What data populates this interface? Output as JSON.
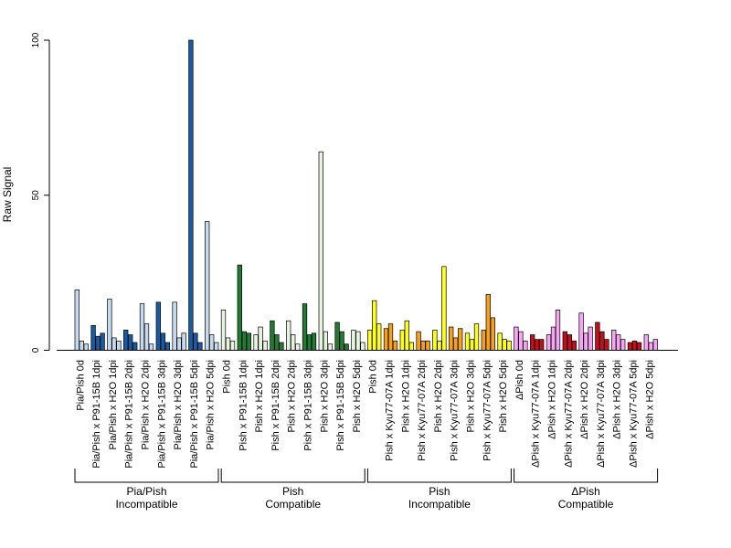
{
  "colors": {
    "pia_light": "#c6d9ee",
    "pia_dark": "#1a5aa0",
    "pish_light": "#e6f4df",
    "pish_dark": "#237a35",
    "kyu_light": "#ffff22",
    "kyu_dark": "#f5a11f",
    "dpish_light": "#f5a5f2",
    "dpish_dark": "#c0101e"
  },
  "chart_data": {
    "type": "bar",
    "ylabel": "Raw Signal",
    "ylim": [
      0,
      100
    ],
    "yticks": [
      "0",
      "50",
      "100"
    ],
    "grid": false,
    "groups": [
      {
        "line1": "Pia/Pish",
        "line2": "Incompatible",
        "categories": [
          {
            "label": "Pia/Pish 0d",
            "color": "pia_light",
            "values": [
              19.5,
              3,
              2
            ]
          },
          {
            "label": "Pia/Pish x P91-15B 1dpi",
            "color": "pia_dark",
            "values": [
              8,
              4.5,
              5.5
            ]
          },
          {
            "label": "Pia/Pish x H2O 1dpi",
            "color": "pia_light",
            "values": [
              16.5,
              4,
              3
            ]
          },
          {
            "label": "Pia/Pish x P91-15B 2dpi",
            "color": "pia_dark",
            "values": [
              6.5,
              5,
              2.5
            ]
          },
          {
            "label": "Pia/Pish x H2O 2dpi",
            "color": "pia_light",
            "values": [
              15,
              8.5,
              2
            ]
          },
          {
            "label": "Pia/Pish x P91-15B 3dpi",
            "color": "pia_dark",
            "values": [
              15.5,
              5.5,
              2.5
            ]
          },
          {
            "label": "Pia/Pish x H2O 3dpi",
            "color": "pia_light",
            "values": [
              15.5,
              4,
              5.5
            ]
          },
          {
            "label": "Pia/Pish x P91-15B 5dpi",
            "color": "pia_dark",
            "values": [
              100,
              5.5,
              2.5
            ]
          },
          {
            "label": "Pia/Pish x H2O 5dpi",
            "color": "pia_light",
            "values": [
              41.5,
              5,
              2.5
            ]
          }
        ]
      },
      {
        "line1": "Pish",
        "line2": "Compatible",
        "categories": [
          {
            "label": "Pish 0d",
            "color": "pish_light",
            "values": [
              13,
              4,
              3
            ]
          },
          {
            "label": "Pish x P91-15B 1dpi",
            "color": "pish_dark",
            "values": [
              27.5,
              6,
              5.5
            ]
          },
          {
            "label": "Pish x H2O 1dpi",
            "color": "pish_light",
            "values": [
              5,
              7.5,
              3
            ]
          },
          {
            "label": "Pish x P91-15B 2dpi",
            "color": "pish_dark",
            "values": [
              9.5,
              5,
              2.5
            ]
          },
          {
            "label": "Pish x H2O 2dpi",
            "color": "pish_light",
            "values": [
              9.5,
              5,
              2
            ]
          },
          {
            "label": "Pish x P91-15B 3dpi",
            "color": "pish_dark",
            "values": [
              15,
              5,
              5.5
            ]
          },
          {
            "label": "Pish x H2O 3dpi",
            "color": "pish_light",
            "values": [
              64,
              6,
              2
            ]
          },
          {
            "label": "Pish x P91-15B 5dpi",
            "color": "pish_dark",
            "values": [
              9,
              6,
              2
            ]
          },
          {
            "label": "Pish x H2O 5dpi",
            "color": "pish_light",
            "values": [
              6.5,
              6,
              2.5
            ]
          }
        ]
      },
      {
        "line1": "Pish",
        "line2": "Incompatible",
        "categories": [
          {
            "label": "Pish 0d",
            "color": "kyu_light",
            "values": [
              6.5,
              16,
              8.5
            ]
          },
          {
            "label": "Pish x Kyu77-07A 1dpi",
            "color": "kyu_dark",
            "values": [
              7,
              8.5,
              3
            ]
          },
          {
            "label": "Pish x H2O 1dpi",
            "color": "kyu_light",
            "values": [
              6.5,
              9.5,
              2.5
            ]
          },
          {
            "label": "Pish x Kyu77-07A 2dpi",
            "color": "kyu_dark",
            "values": [
              6,
              3,
              3
            ]
          },
          {
            "label": "Pish x H2O 2dpi",
            "color": "kyu_light",
            "values": [
              6.5,
              3,
              27
            ]
          },
          {
            "label": "Pish x Kyu77-07A 3dpi",
            "color": "kyu_dark",
            "values": [
              7.5,
              4,
              7
            ]
          },
          {
            "label": "Pish x H2O 3dpi",
            "color": "kyu_light",
            "values": [
              5.5,
              3.5,
              8.5
            ]
          },
          {
            "label": "Pish x Kyu77-07A 5dpi",
            "color": "kyu_dark",
            "values": [
              6.5,
              18,
              10.5
            ]
          },
          {
            "label": "Pish x H2O 5dpi",
            "color": "kyu_light",
            "values": [
              5.5,
              3.5,
              3
            ]
          }
        ]
      },
      {
        "line1": "ΔPish",
        "line2": "Compatible",
        "categories": [
          {
            "label": "ΔPish 0d",
            "color": "dpish_light",
            "values": [
              7.5,
              6,
              3
            ]
          },
          {
            "label": "ΔPish x Kyu77-07A 1dpi",
            "color": "dpish_dark",
            "values": [
              5,
              3.5,
              3.5
            ]
          },
          {
            "label": "ΔPish x H2O 1dpi",
            "color": "dpish_light",
            "values": [
              5,
              7.5,
              13
            ]
          },
          {
            "label": "ΔPish x Kyu77-07A 2dpi",
            "color": "dpish_dark",
            "values": [
              6,
              5,
              3
            ]
          },
          {
            "label": "ΔPish x H2O 2dpi",
            "color": "dpish_light",
            "values": [
              12,
              5.5,
              7.5
            ]
          },
          {
            "label": "ΔPish x Kyu77-07A 3dpi",
            "color": "dpish_dark",
            "values": [
              9,
              6,
              3.5
            ]
          },
          {
            "label": "ΔPish x H2O 3dpi",
            "color": "dpish_light",
            "values": [
              6.5,
              5,
              3.5
            ]
          },
          {
            "label": "ΔPish x Kyu77-07A 5dpi",
            "color": "dpish_dark",
            "values": [
              2.5,
              3,
              2.5
            ]
          },
          {
            "label": "ΔPish x H2O 5dpi",
            "color": "dpish_light",
            "values": [
              5,
              2.5,
              3.5
            ]
          }
        ]
      }
    ]
  }
}
